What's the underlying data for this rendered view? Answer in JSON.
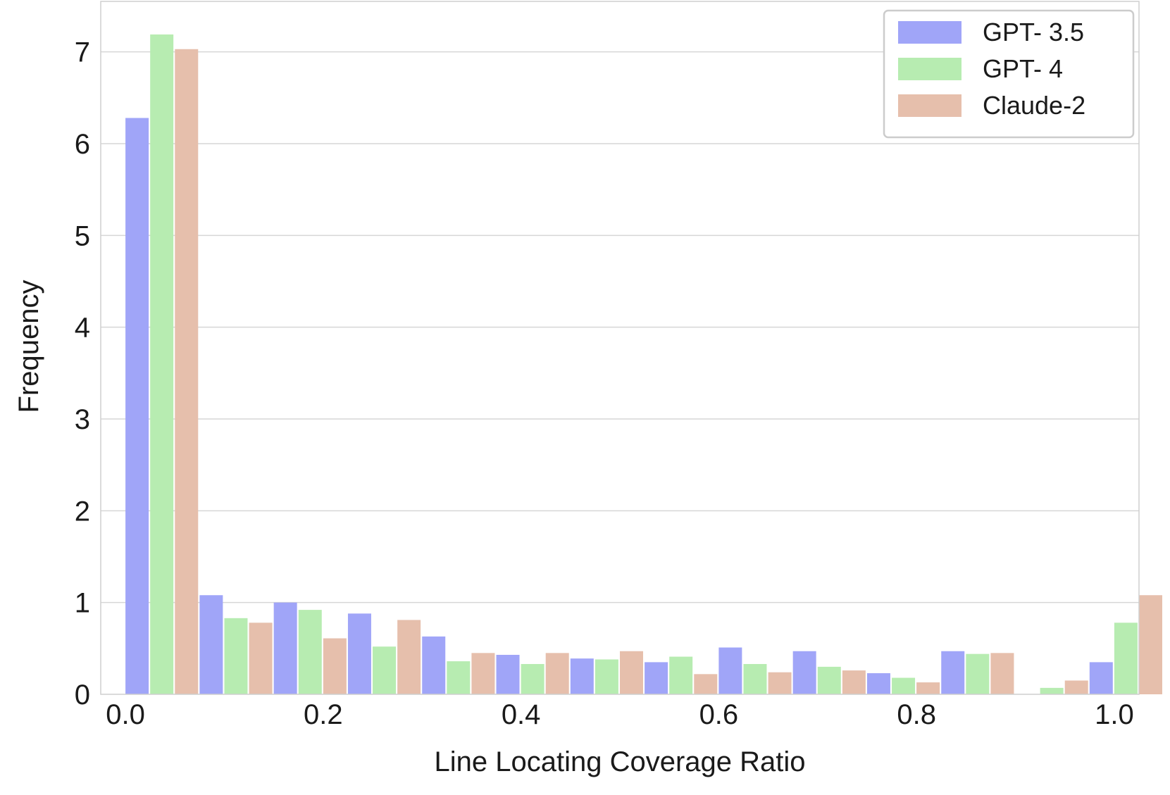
{
  "chart_data": {
    "type": "bar",
    "xlabel": "Line Locating Coverage Ratio",
    "ylabel": "Frequency",
    "xlim": [
      -0.025,
      1.025
    ],
    "ylim": [
      0,
      7.55
    ],
    "x_ticks": [
      0.0,
      0.2,
      0.4,
      0.6,
      0.8,
      1.0
    ],
    "x_tick_labels": [
      "0.0",
      "0.2",
      "0.4",
      "0.6",
      "0.8",
      "1.0"
    ],
    "y_ticks": [
      0,
      1,
      2,
      3,
      4,
      5,
      6,
      7
    ],
    "y_tick_labels": [
      "0",
      "1",
      "2",
      "3",
      "4",
      "5",
      "6",
      "7"
    ],
    "grid": "horizontal",
    "legend_position": "top-right",
    "bin_edges": [
      0.0,
      0.075,
      0.15,
      0.225,
      0.3,
      0.375,
      0.45,
      0.525,
      0.6,
      0.675,
      0.75,
      0.825,
      0.9,
      0.975
    ],
    "series": [
      {
        "name": "GPT- 3.5",
        "color": "#a0a5f8",
        "values": [
          6.28,
          1.08,
          1.0,
          0.88,
          0.63,
          0.43,
          0.39,
          0.35,
          0.51,
          0.47,
          0.23,
          0.47,
          0.0,
          0.35
        ]
      },
      {
        "name": "GPT- 4",
        "color": "#b7ecb1",
        "values": [
          7.19,
          0.83,
          0.92,
          0.52,
          0.36,
          0.33,
          0.38,
          0.41,
          0.33,
          0.3,
          0.18,
          0.44,
          0.07,
          0.78
        ]
      },
      {
        "name": "Claude-2",
        "color": "#e6bfac",
        "values": [
          7.03,
          0.78,
          0.61,
          0.81,
          0.45,
          0.45,
          0.47,
          0.22,
          0.24,
          0.26,
          0.13,
          0.45,
          0.15,
          1.08
        ]
      }
    ]
  }
}
